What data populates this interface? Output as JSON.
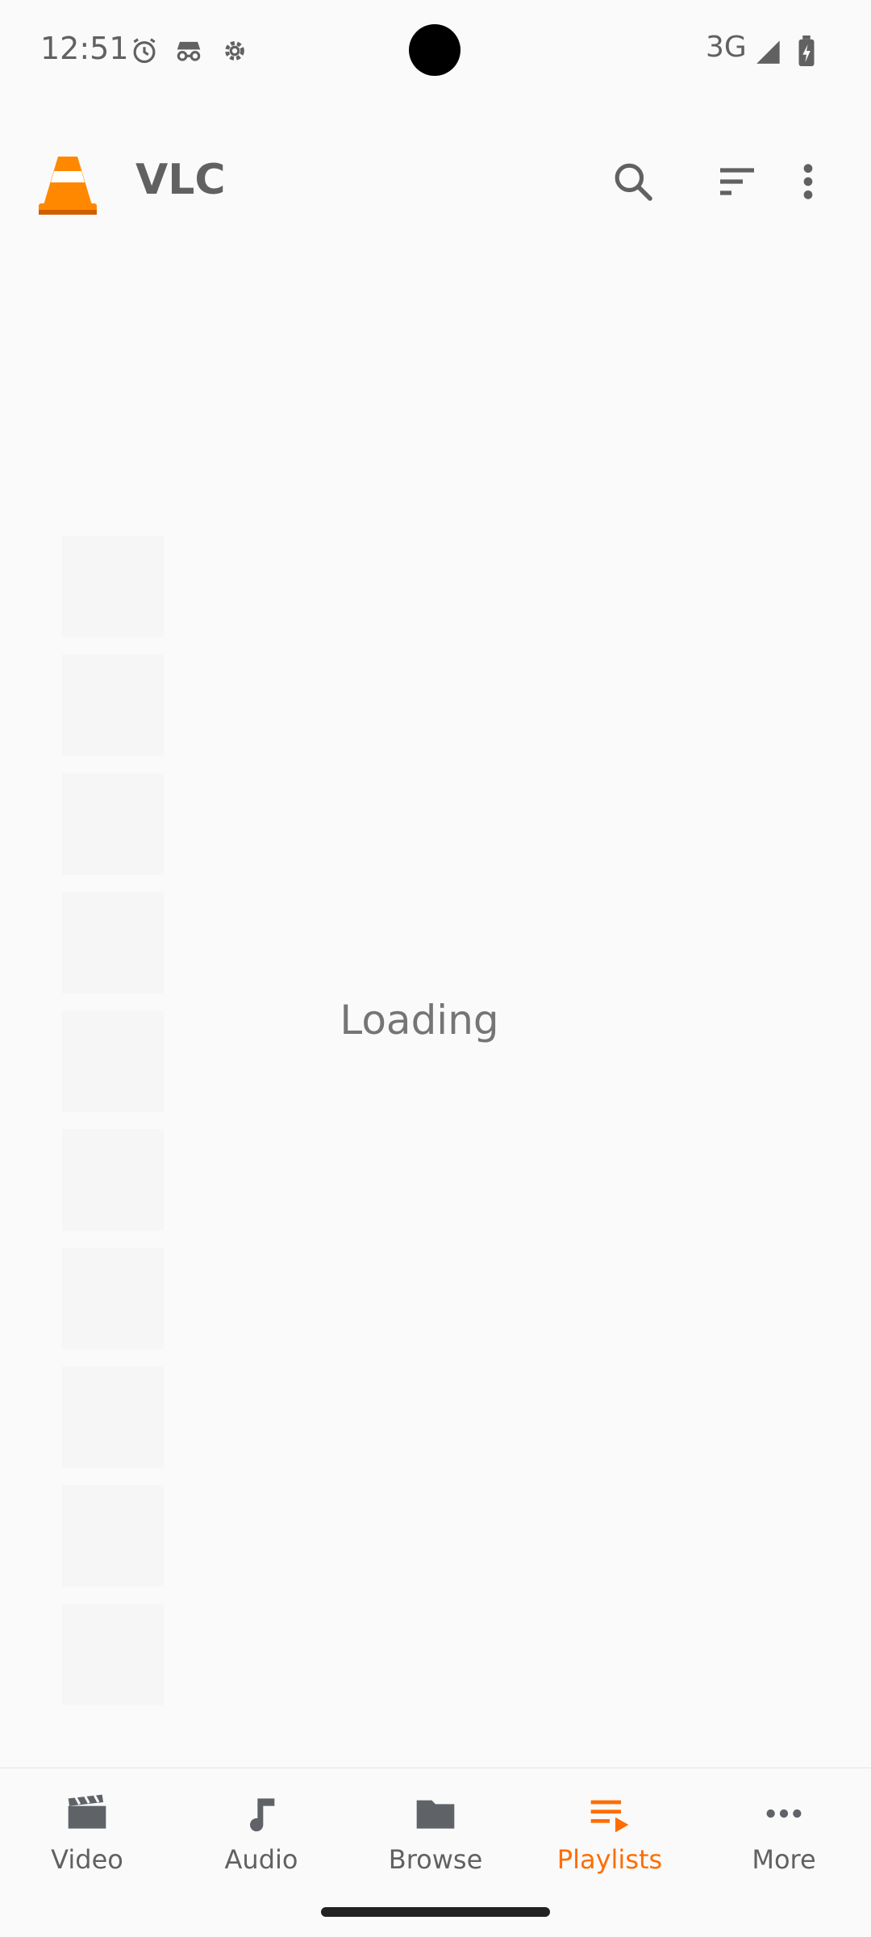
{
  "status_bar": {
    "time": "12:51",
    "network": "3G",
    "icons": [
      "alarm-icon",
      "incognito-icon",
      "settings-gear-icon",
      "signal-icon",
      "battery-icon"
    ]
  },
  "app_bar": {
    "title": "VLC",
    "icons": [
      "vlc-cone-icon",
      "search-icon",
      "sort-icon",
      "more-vert-icon"
    ]
  },
  "main": {
    "loading_text": "Loading"
  },
  "bottom_nav": {
    "items": [
      {
        "label": "Video",
        "icon": "video-clapper-icon",
        "active": false
      },
      {
        "label": "Audio",
        "icon": "music-note-icon",
        "active": false
      },
      {
        "label": "Browse",
        "icon": "folder-icon",
        "active": false
      },
      {
        "label": "Playlists",
        "icon": "playlist-icon",
        "active": true
      },
      {
        "label": "More",
        "icon": "more-horiz-icon",
        "active": false
      }
    ]
  },
  "colors": {
    "accent": "#ff6d00",
    "text": "#616161",
    "background": "#fafafa"
  }
}
